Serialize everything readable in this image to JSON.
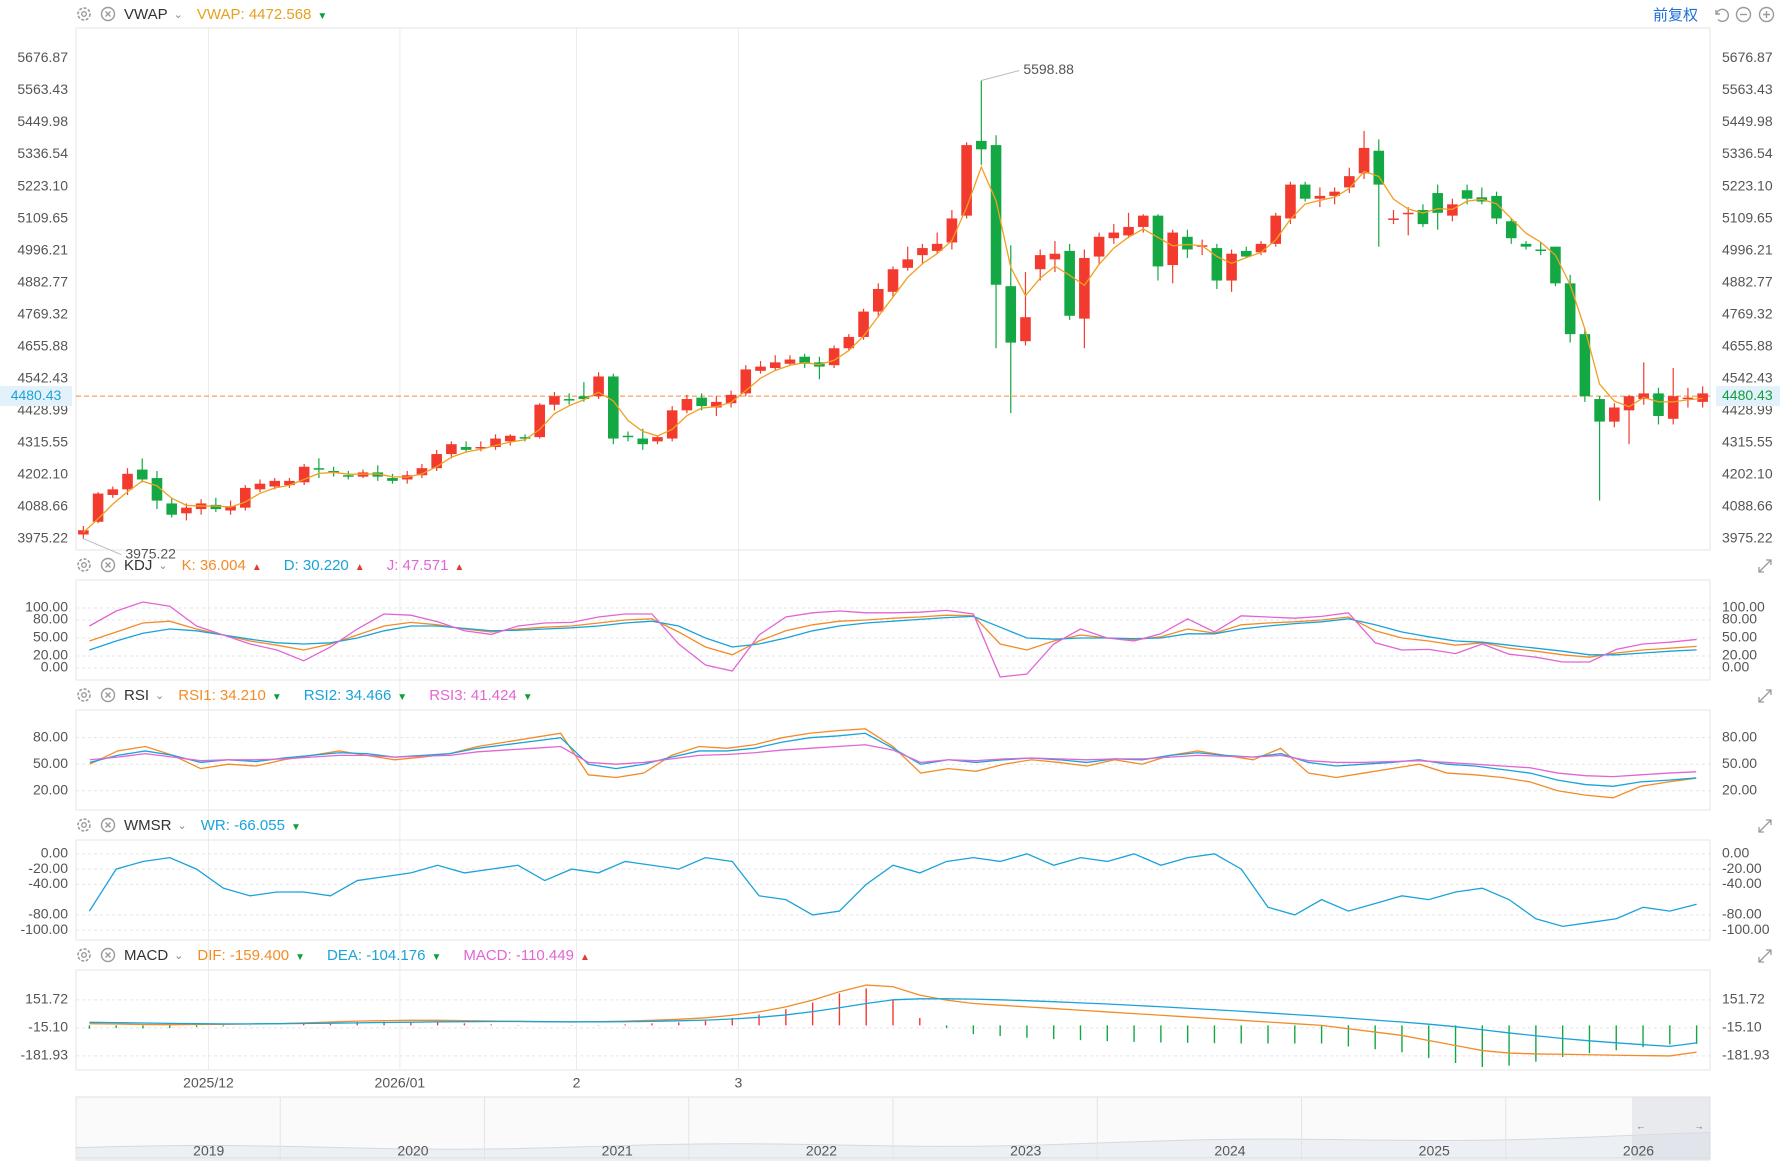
{
  "header": {
    "settings_icon": "gear-icon",
    "close_icon": "close-circle-icon",
    "adjust_label": "前复权",
    "right_icons": [
      "undo-icon",
      "zoom-out-icon",
      "zoom-in-icon"
    ]
  },
  "panels": {
    "main": {
      "name": "VWAP",
      "items": [
        {
          "label": "VWAP:",
          "value": "4472.568",
          "color": "#e8a020",
          "trend": "▼",
          "trend_color": "#0e9f3c"
        }
      ]
    },
    "kdj": {
      "name": "KDJ",
      "items": [
        {
          "label": "K:",
          "value": "36.004",
          "color": "#f28c28",
          "trend": "▲",
          "trend_color": "#e03c31"
        },
        {
          "label": "D:",
          "value": "30.220",
          "color": "#1aa3d9",
          "trend": "▲",
          "trend_color": "#e03c31"
        },
        {
          "label": "J:",
          "value": "47.571",
          "color": "#e265d4",
          "trend": "▲",
          "trend_color": "#e03c31"
        }
      ]
    },
    "rsi": {
      "name": "RSI",
      "items": [
        {
          "label": "RSI1:",
          "value": "34.210",
          "color": "#f28c28",
          "trend": "▼",
          "trend_color": "#0e9f3c"
        },
        {
          "label": "RSI2:",
          "value": "34.466",
          "color": "#1aa3d9",
          "trend": "▼",
          "trend_color": "#0e9f3c"
        },
        {
          "label": "RSI3:",
          "value": "41.424",
          "color": "#e265d4",
          "trend": "▼",
          "trend_color": "#0e9f3c"
        }
      ]
    },
    "wmsr": {
      "name": "WMSR",
      "items": [
        {
          "label": "WR:",
          "value": "-66.055",
          "color": "#1aa3d9",
          "trend": "▼",
          "trend_color": "#0e9f3c"
        }
      ]
    },
    "macd": {
      "name": "MACD",
      "items": [
        {
          "label": "DIF:",
          "value": "-159.400",
          "color": "#f28c28",
          "trend": "▼",
          "trend_color": "#0e9f3c"
        },
        {
          "label": "DEA:",
          "value": "-104.176",
          "color": "#1aa3d9",
          "trend": "▼",
          "trend_color": "#0e9f3c"
        },
        {
          "label": "MACD:",
          "value": "-110.449",
          "color": "#e265d4",
          "trend": "▲",
          "trend_color": "#e03c31"
        }
      ]
    }
  },
  "chart_data": {
    "type": "candlestick",
    "colors": {
      "up": "#f23a2f",
      "down": "#13a843",
      "vwap": "#f0a020",
      "k": "#f28c28",
      "d": "#1aa3d9",
      "j": "#e265d4",
      "last_price": "#f28c28",
      "grid": "#e8e8e8"
    },
    "price_axis_ticks": [
      "5676.87",
      "5563.43",
      "5449.98",
      "5336.54",
      "5223.10",
      "5109.65",
      "4996.21",
      "4882.77",
      "4769.32",
      "4655.88",
      "4542.43",
      "4428.99",
      "4315.55",
      "4202.10",
      "4088.66",
      "3975.22"
    ],
    "price_ylim": [
      3935,
      5785
    ],
    "last_price": "4480.43",
    "high_label": "5598.88",
    "low_label": "3975.22",
    "x_labels": [
      "2025/12",
      "2026/01",
      "2",
      "3"
    ],
    "x_label_index": [
      9,
      22,
      34,
      45
    ],
    "ohlc": [
      [
        3990,
        4005,
        3975.22,
        4020
      ],
      [
        4035,
        4135,
        4030,
        4140
      ],
      [
        4130,
        4150,
        4120,
        4160
      ],
      [
        4150,
        4205,
        4130,
        4225
      ],
      [
        4220,
        4185,
        4175,
        4260
      ],
      [
        4190,
        4110,
        4080,
        4215
      ],
      [
        4100,
        4060,
        4050,
        4120
      ],
      [
        4065,
        4085,
        4040,
        4100
      ],
      [
        4080,
        4100,
        4060,
        4115
      ],
      [
        4095,
        4080,
        4070,
        4120
      ],
      [
        4075,
        4090,
        4060,
        4110
      ],
      [
        4085,
        4155,
        4075,
        4165
      ],
      [
        4150,
        4170,
        4140,
        4185
      ],
      [
        4160,
        4180,
        4150,
        4190
      ],
      [
        4165,
        4180,
        4155,
        4190
      ],
      [
        4175,
        4230,
        4165,
        4240
      ],
      [
        4225,
        4220,
        4190,
        4260
      ],
      [
        4215,
        4210,
        4195,
        4230
      ],
      [
        4200,
        4195,
        4185,
        4215
      ],
      [
        4195,
        4210,
        4190,
        4220
      ],
      [
        4210,
        4195,
        4180,
        4235
      ],
      [
        4190,
        4180,
        4170,
        4205
      ],
      [
        4185,
        4200,
        4170,
        4215
      ],
      [
        4200,
        4225,
        4190,
        4240
      ],
      [
        4225,
        4275,
        4215,
        4290
      ],
      [
        4275,
        4310,
        4260,
        4320
      ],
      [
        4300,
        4290,
        4280,
        4320
      ],
      [
        4295,
        4300,
        4285,
        4320
      ],
      [
        4300,
        4330,
        4290,
        4345
      ],
      [
        4320,
        4340,
        4305,
        4345
      ],
      [
        4335,
        4330,
        4320,
        4345
      ],
      [
        4335,
        4450,
        4330,
        4455
      ],
      [
        4450,
        4480,
        4430,
        4495
      ],
      [
        4470,
        4465,
        4450,
        4490
      ],
      [
        4480,
        4470,
        4460,
        4530
      ],
      [
        4480,
        4550,
        4470,
        4565
      ],
      [
        4550,
        4330,
        4310,
        4560
      ],
      [
        4340,
        4335,
        4320,
        4355
      ],
      [
        4330,
        4310,
        4290,
        4365
      ],
      [
        4320,
        4335,
        4310,
        4340
      ],
      [
        4330,
        4430,
        4320,
        4445
      ],
      [
        4430,
        4470,
        4420,
        4485
      ],
      [
        4475,
        4445,
        4430,
        4490
      ],
      [
        4440,
        4460,
        4410,
        4480
      ],
      [
        4455,
        4485,
        4440,
        4500
      ],
      [
        4490,
        4575,
        4480,
        4590
      ],
      [
        4570,
        4585,
        4560,
        4605
      ],
      [
        4580,
        4600,
        4570,
        4625
      ],
      [
        4595,
        4610,
        4590,
        4625
      ],
      [
        4620,
        4595,
        4580,
        4630
      ],
      [
        4600,
        4585,
        4540,
        4620
      ],
      [
        4590,
        4650,
        4580,
        4660
      ],
      [
        4650,
        4690,
        4640,
        4700
      ],
      [
        4690,
        4780,
        4680,
        4790
      ],
      [
        4780,
        4860,
        4760,
        4880
      ],
      [
        4850,
        4930,
        4830,
        4940
      ],
      [
        4935,
        4965,
        4925,
        5010
      ],
      [
        4980,
        5005,
        4950,
        5020
      ],
      [
        4995,
        5020,
        4985,
        5060
      ],
      [
        5025,
        5110,
        5000,
        5140
      ],
      [
        5120,
        5370,
        5110,
        5380
      ],
      [
        5385,
        5355,
        5300,
        5598.88
      ],
      [
        5370,
        4875,
        4650,
        5405
      ],
      [
        4870,
        4670,
        4420,
        5015
      ],
      [
        4675,
        4760,
        4660,
        4920
      ],
      [
        4930,
        4980,
        4890,
        5000
      ],
      [
        4965,
        4985,
        4920,
        5030
      ],
      [
        4995,
        4765,
        4750,
        5020
      ],
      [
        4755,
        4970,
        4650,
        5000
      ],
      [
        4975,
        5045,
        4950,
        5060
      ],
      [
        5040,
        5060,
        5020,
        5090
      ],
      [
        5050,
        5080,
        5040,
        5130
      ],
      [
        5080,
        5120,
        5060,
        5125
      ],
      [
        5120,
        4940,
        4890,
        5125
      ],
      [
        4945,
        5060,
        4880,
        5070
      ],
      [
        5045,
        5000,
        4970,
        5070
      ],
      [
        5010,
        5015,
        4980,
        5035
      ],
      [
        5005,
        4890,
        4860,
        5020
      ],
      [
        4890,
        4985,
        4850,
        5000
      ],
      [
        4995,
        4975,
        4970,
        5010
      ],
      [
        4990,
        5020,
        4980,
        5030
      ],
      [
        5020,
        5120,
        5010,
        5130
      ],
      [
        5110,
        5230,
        5090,
        5240
      ],
      [
        5230,
        5180,
        5170,
        5240
      ],
      [
        5180,
        5190,
        5150,
        5220
      ],
      [
        5190,
        5205,
        5160,
        5220
      ],
      [
        5220,
        5260,
        5200,
        5290
      ],
      [
        5270,
        5360,
        5250,
        5420
      ],
      [
        5350,
        5230,
        5010,
        5390
      ],
      [
        5110,
        5110,
        5090,
        5140
      ],
      [
        5130,
        5130,
        5050,
        5150
      ],
      [
        5140,
        5090,
        5080,
        5160
      ],
      [
        5200,
        5130,
        5070,
        5230
      ],
      [
        5120,
        5160,
        5100,
        5180
      ],
      [
        5210,
        5180,
        5160,
        5230
      ],
      [
        5185,
        5170,
        5160,
        5220
      ],
      [
        5190,
        5110,
        5090,
        5205
      ],
      [
        5100,
        5040,
        5020,
        5110
      ],
      [
        5020,
        5010,
        5000,
        5030
      ],
      [
        5000,
        4995,
        4980,
        5025
      ],
      [
        5010,
        4880,
        4870,
        5010
      ],
      [
        4880,
        4700,
        4670,
        4910
      ],
      [
        4700,
        4480,
        4460,
        4720
      ],
      [
        4470,
        4390,
        4110,
        4480
      ],
      [
        4390,
        4440,
        4370,
        4455
      ],
      [
        4430,
        4480,
        4310,
        4485
      ],
      [
        4470,
        4490,
        4450,
        4600
      ],
      [
        4490,
        4410,
        4380,
        4510
      ],
      [
        4400,
        4480,
        4380,
        4580
      ],
      [
        4470,
        4475,
        4440,
        4510
      ],
      [
        4460,
        4490,
        4440,
        4515
      ]
    ],
    "kdj": {
      "ticks": [
        "100.00",
        "80.00",
        "50.00",
        "20.00",
        "0.00"
      ],
      "ylim": [
        -10,
        130
      ],
      "k": [
        45,
        60,
        75,
        78,
        65,
        55,
        45,
        38,
        30,
        40,
        55,
        70,
        76,
        72,
        65,
        60,
        65,
        68,
        70,
        75,
        80,
        82,
        60,
        35,
        22,
        45,
        62,
        72,
        78,
        80,
        83,
        85,
        88,
        87,
        40,
        30,
        45,
        55,
        50,
        47,
        52,
        65,
        58,
        72,
        75,
        77,
        80,
        85,
        62,
        50,
        45,
        38,
        42,
        33,
        28,
        22,
        18,
        25,
        30,
        33,
        36
      ],
      "d": [
        30,
        45,
        58,
        65,
        62,
        55,
        48,
        42,
        40,
        42,
        50,
        62,
        70,
        70,
        66,
        62,
        63,
        65,
        67,
        70,
        75,
        78,
        70,
        50,
        35,
        40,
        50,
        62,
        70,
        75,
        78,
        81,
        84,
        86,
        68,
        50,
        48,
        50,
        50,
        49,
        50,
        57,
        57,
        65,
        70,
        74,
        77,
        82,
        72,
        60,
        52,
        45,
        43,
        38,
        33,
        28,
        22,
        22,
        25,
        28,
        30.2
      ],
      "j": [
        70,
        95,
        110,
        103,
        70,
        55,
        40,
        30,
        12,
        35,
        65,
        90,
        88,
        77,
        62,
        56,
        70,
        75,
        76,
        85,
        90,
        90,
        40,
        5,
        -5,
        55,
        85,
        92,
        95,
        92,
        92,
        93,
        96,
        90,
        -15,
        -10,
        40,
        65,
        50,
        45,
        57,
        82,
        60,
        87,
        85,
        83,
        86,
        92,
        42,
        30,
        31,
        24,
        40,
        23,
        18,
        10,
        10,
        31,
        40,
        43,
        47.6
      ]
    },
    "rsi": {
      "ticks": [
        "80.00",
        "50.00",
        "20.00"
      ],
      "ylim": [
        5,
        100
      ],
      "rsi1": [
        50,
        65,
        70,
        60,
        45,
        50,
        48,
        55,
        60,
        65,
        60,
        55,
        58,
        62,
        70,
        75,
        80,
        85,
        38,
        35,
        40,
        60,
        70,
        68,
        72,
        80,
        85,
        88,
        90,
        70,
        40,
        45,
        42,
        50,
        55,
        52,
        48,
        55,
        50,
        60,
        65,
        60,
        55,
        68,
        40,
        35,
        40,
        45,
        50,
        40,
        38,
        35,
        30,
        20,
        15,
        12,
        25,
        30,
        34.2
      ],
      "rsi2": [
        52,
        60,
        65,
        60,
        52,
        55,
        53,
        57,
        60,
        63,
        62,
        58,
        60,
        62,
        68,
        72,
        76,
        80,
        50,
        45,
        50,
        58,
        65,
        65,
        68,
        75,
        80,
        82,
        85,
        68,
        50,
        55,
        52,
        55,
        57,
        55,
        52,
        56,
        55,
        60,
        63,
        60,
        58,
        62,
        52,
        48,
        50,
        52,
        55,
        50,
        48,
        44,
        40,
        32,
        27,
        25,
        30,
        32,
        34.5
      ],
      "rsi3": [
        55,
        58,
        62,
        58,
        54,
        55,
        55,
        56,
        58,
        60,
        60,
        58,
        59,
        60,
        64,
        66,
        68,
        70,
        52,
        50,
        52,
        56,
        60,
        61,
        63,
        66,
        68,
        70,
        72,
        66,
        52,
        55,
        54,
        56,
        57,
        56,
        55,
        56,
        56,
        58,
        60,
        59,
        58,
        60,
        54,
        52,
        52,
        53,
        54,
        52,
        50,
        48,
        46,
        40,
        37,
        36,
        38,
        40,
        41.4
      ]
    },
    "wmsr": {
      "ticks": [
        "0.00",
        "-20.00",
        "-40.00",
        "-80.00",
        "-100.00"
      ],
      "ylim": [
        -105,
        5
      ],
      "wr": [
        -75,
        -20,
        -10,
        -5,
        -20,
        -45,
        -55,
        -50,
        -50,
        -55,
        -35,
        -30,
        -25,
        -15,
        -25,
        -20,
        -15,
        -35,
        -20,
        -25,
        -10,
        -15,
        -20,
        -5,
        -10,
        -55,
        -60,
        -80,
        -75,
        -40,
        -15,
        -25,
        -10,
        -5,
        -10,
        0,
        -15,
        -5,
        -10,
        0,
        -15,
        -5,
        0,
        -20,
        -70,
        -80,
        -60,
        -75,
        -65,
        -55,
        -60,
        -50,
        -45,
        -60,
        -85,
        -95,
        -90,
        -85,
        -70,
        -75,
        -66.1
      ]
    },
    "macd": {
      "ticks": [
        "151.72",
        "-15.10",
        "-181.93"
      ],
      "ylim": [
        -230,
        270
      ],
      "dif": [
        10,
        8,
        5,
        4,
        5,
        6,
        8,
        10,
        15,
        20,
        25,
        28,
        30,
        30,
        28,
        26,
        24,
        22,
        20,
        22,
        25,
        30,
        36,
        45,
        60,
        80,
        110,
        150,
        200,
        240,
        230,
        180,
        150,
        130,
        120,
        110,
        100,
        90,
        80,
        70,
        60,
        50,
        40,
        30,
        20,
        10,
        0,
        -20,
        -40,
        -60,
        -90,
        -120,
        -150,
        -165,
        -170,
        -172,
        -175,
        -178,
        -180,
        -182,
        -159.4
      ],
      "dea": [
        18,
        16,
        14,
        12,
        10,
        9,
        9,
        10,
        11,
        13,
        15,
        17,
        19,
        21,
        22,
        23,
        23,
        22,
        21,
        21,
        22,
        24,
        27,
        31,
        38,
        48,
        62,
        82,
        105,
        130,
        152,
        158,
        158,
        156,
        152,
        147,
        141,
        134,
        127,
        119,
        111,
        102,
        93,
        84,
        74,
        64,
        54,
        43,
        31,
        20,
        7,
        -8,
        -26,
        -45,
        -62,
        -78,
        -92,
        -104,
        -115,
        -125,
        -104.2
      ],
      "hist": [
        -20,
        -16,
        -18,
        -16,
        -10,
        -6,
        -2,
        0,
        8,
        14,
        20,
        22,
        22,
        18,
        12,
        6,
        2,
        0,
        -2,
        2,
        6,
        12,
        18,
        28,
        44,
        64,
        96,
        136,
        190,
        220,
        156,
        44,
        -16,
        -52,
        -64,
        -74,
        -82,
        -88,
        -94,
        -98,
        -102,
        -104,
        -106,
        -108,
        -108,
        -108,
        -108,
        -126,
        -142,
        -160,
        -194,
        -224,
        -248,
        -240,
        -216,
        -188,
        -166,
        -148,
        -130,
        -114,
        -110.4
      ]
    },
    "navigator": {
      "years": [
        "2019",
        "2020",
        "2021",
        "2022",
        "2023",
        "2024",
        "2025",
        "2026"
      ]
    }
  }
}
